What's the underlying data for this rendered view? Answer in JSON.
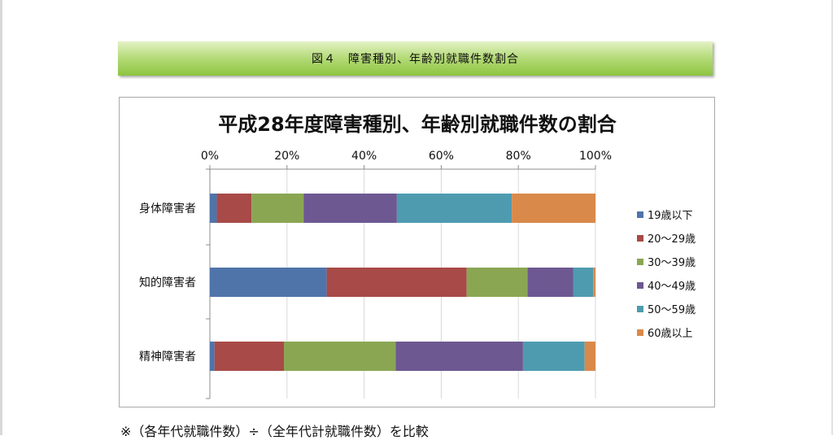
{
  "header": {
    "label": "図４　障害種別、年齢別就職件数割合"
  },
  "footnote": "※（各年代就職件数）÷（全年代計就職件数）を比較",
  "colors": {
    "header_bar": "#8cc43f",
    "gridline": "#d9d9d9",
    "series": [
      "#4f74aa",
      "#a84a47",
      "#8aa653",
      "#6d5891",
      "#4e9bb0",
      "#d9894a"
    ]
  },
  "chart_data": {
    "type": "bar",
    "orientation": "horizontal",
    "stacked": "percent",
    "title": "平成28年度障害種別、年齢別就職件数の割合",
    "categories": [
      "身体障害者",
      "知的障害者",
      "精神障害者"
    ],
    "xlim": [
      0,
      100
    ],
    "ticks": [
      "0%",
      "20%",
      "40%",
      "60%",
      "80%",
      "100%"
    ],
    "tick_values": [
      0,
      20,
      40,
      60,
      80,
      100
    ],
    "axis_position": "top",
    "grid": true,
    "legend_position": "right",
    "series": [
      {
        "name": "19歳以下",
        "values": [
          1.8,
          30.3,
          1.2
        ]
      },
      {
        "name": "20～29歳",
        "values": [
          9.0,
          36.3,
          18.0
        ]
      },
      {
        "name": "30～39歳",
        "values": [
          13.5,
          15.8,
          29.0
        ]
      },
      {
        "name": "40～49歳",
        "values": [
          24.2,
          11.8,
          33.0
        ]
      },
      {
        "name": "50～59歳",
        "values": [
          29.8,
          5.2,
          16.0
        ]
      },
      {
        "name": "60歳以上",
        "values": [
          21.7,
          0.6,
          2.8
        ]
      }
    ]
  }
}
